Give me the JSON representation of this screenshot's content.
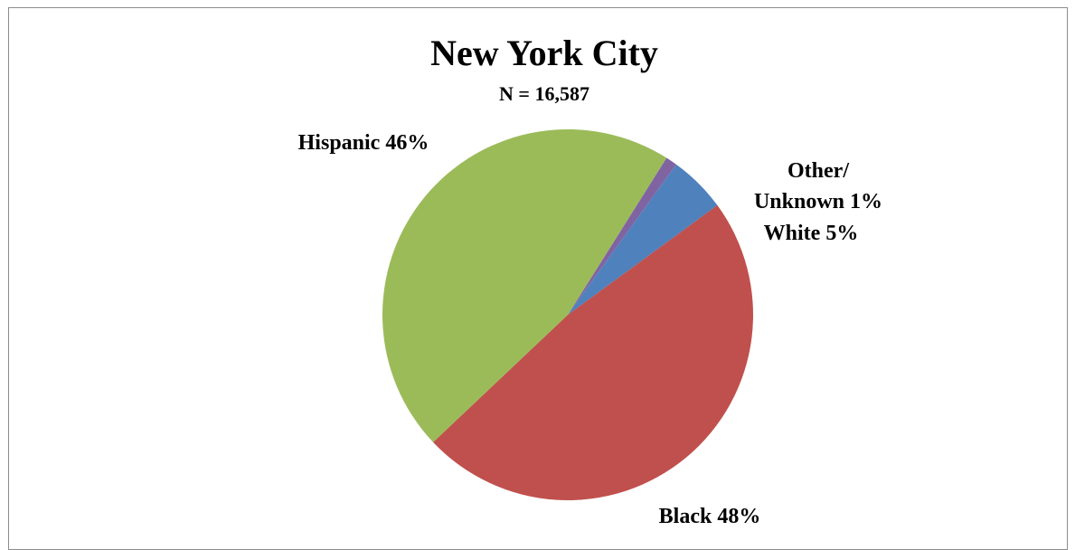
{
  "chart_data": {
    "type": "pie",
    "title": "New York City",
    "subtitle": "N = 16,587",
    "start_angle_deg": 32.2,
    "direction": "clockwise",
    "slices": [
      {
        "label": "Other/ Unknown",
        "label_lines": [
          "Other/",
          "Unknown 1%"
        ],
        "value": 1,
        "color": "#8064a2"
      },
      {
        "label": "White",
        "label_lines": [
          "White 5%"
        ],
        "value": 5,
        "color": "#4f81bd"
      },
      {
        "label": "Black",
        "label_lines": [
          "Black 48%"
        ],
        "value": 48,
        "color": "#c0504d"
      },
      {
        "label": "Hispanic",
        "label_lines": [
          "Hispanic 46%"
        ],
        "value": 46,
        "color": "#9bbb59"
      }
    ]
  }
}
